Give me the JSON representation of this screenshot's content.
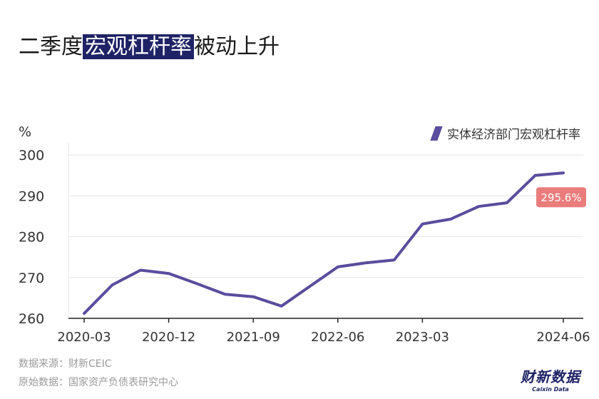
{
  "title": {
    "prefix": "二季度",
    "highlight": "宏观杠杆率",
    "suffix": "被动上升"
  },
  "colors": {
    "line": "#5a4c9e",
    "highlight_bg": "#1f2366",
    "label_bg": "#ea7c7c"
  },
  "footer": {
    "source": "数据来源：财新CEIC",
    "original": "原始数据：国家资产负债表研究中心"
  },
  "brand": {
    "cn": "财新数据",
    "en": "Caixin Data"
  },
  "chart_data": {
    "type": "line",
    "ylabel": "%",
    "ylim": [
      260,
      303
    ],
    "yticks": [
      260,
      270,
      280,
      290,
      300
    ],
    "x_tick_labels": [
      "2020-03",
      "2020-12",
      "2021-09",
      "2022-06",
      "2023-03",
      "2024-06"
    ],
    "legend_position": "top-right",
    "grid": true,
    "series": [
      {
        "name": "实体经济部门宏观杠杆率",
        "x": [
          "2020-03",
          "2020-06",
          "2020-09",
          "2020-12",
          "2021-03",
          "2021-06",
          "2021-09",
          "2021-12",
          "2022-03",
          "2022-06",
          "2022-09",
          "2022-12",
          "2023-03",
          "2023-06",
          "2023-09",
          "2023-12",
          "2024-03",
          "2024-06"
        ],
        "values": [
          261.2,
          268.2,
          271.8,
          271.0,
          268.5,
          265.9,
          265.3,
          263.0,
          267.8,
          272.6,
          273.6,
          274.3,
          283.1,
          284.3,
          287.4,
          288.3,
          295.0,
          295.6
        ]
      }
    ],
    "annotations": [
      {
        "x": "2024-06",
        "value": 295.6,
        "text": "295.6%"
      }
    ]
  }
}
